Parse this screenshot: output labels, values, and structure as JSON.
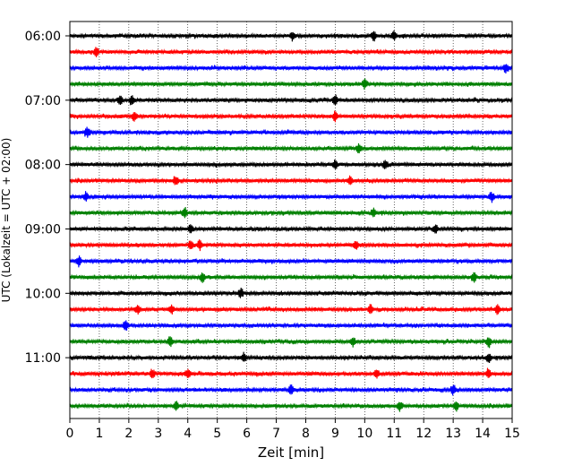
{
  "chart_data": {
    "type": "line",
    "title": "",
    "xlabel": "Zeit  [min]",
    "ylabel": "UTC (Lokalzeit = UTC + 02:00)",
    "xlim": [
      0,
      15
    ],
    "x_ticks": [
      "0",
      "1",
      "2",
      "3",
      "4",
      "5",
      "6",
      "7",
      "8",
      "9",
      "10",
      "11",
      "12",
      "13",
      "14",
      "15"
    ],
    "y_tick_labels": [
      "06:00",
      "07:00",
      "08:00",
      "09:00",
      "10:00",
      "11:00"
    ],
    "grid": "vertical dotted lines at each minute",
    "trace_interval_min": 15,
    "start_utc": "06:00",
    "end_utc": "11:45",
    "trace_colors": [
      "#000000",
      "#ff0000",
      "#0000ff",
      "#008000"
    ],
    "series": [
      {
        "label": "06:00",
        "color": "#000000",
        "events_min": [
          7.55,
          10.3,
          11.0
        ]
      },
      {
        "label": "06:15",
        "color": "#ff0000",
        "events_min": [
          0.9
        ]
      },
      {
        "label": "06:30",
        "color": "#0000ff",
        "events_min": [
          14.8
        ]
      },
      {
        "label": "06:45",
        "color": "#008000",
        "events_min": [
          10.0
        ]
      },
      {
        "label": "07:00",
        "color": "#000000",
        "events_min": [
          1.7,
          2.1,
          9.0
        ]
      },
      {
        "label": "07:15",
        "color": "#ff0000",
        "events_min": [
          2.2,
          9.0
        ]
      },
      {
        "label": "07:30",
        "color": "#0000ff",
        "events_min": [
          0.6
        ]
      },
      {
        "label": "07:45",
        "color": "#008000",
        "events_min": [
          9.8
        ]
      },
      {
        "label": "08:00",
        "color": "#000000",
        "events_min": [
          9.0,
          10.7
        ]
      },
      {
        "label": "08:15",
        "color": "#ff0000",
        "events_min": [
          3.6,
          9.5
        ]
      },
      {
        "label": "08:30",
        "color": "#0000ff",
        "events_min": [
          0.55,
          14.3
        ]
      },
      {
        "label": "08:45",
        "color": "#008000",
        "events_min": [
          3.9,
          10.3
        ]
      },
      {
        "label": "09:00",
        "color": "#000000",
        "events_min": [
          4.1,
          12.4
        ]
      },
      {
        "label": "09:15",
        "color": "#ff0000",
        "events_min": [
          4.1,
          4.4,
          9.7
        ]
      },
      {
        "label": "09:30",
        "color": "#0000ff",
        "events_min": [
          0.3
        ]
      },
      {
        "label": "09:45",
        "color": "#008000",
        "events_min": [
          4.5,
          13.7
        ]
      },
      {
        "label": "10:00",
        "color": "#000000",
        "events_min": [
          5.8
        ]
      },
      {
        "label": "10:15",
        "color": "#ff0000",
        "events_min": [
          2.3,
          3.45,
          10.2,
          14.5
        ]
      },
      {
        "label": "10:30",
        "color": "#0000ff",
        "events_min": [
          1.9
        ]
      },
      {
        "label": "10:45",
        "color": "#008000",
        "events_min": [
          3.4,
          9.6,
          14.2
        ]
      },
      {
        "label": "11:00",
        "color": "#000000",
        "events_min": [
          5.9,
          14.2
        ]
      },
      {
        "label": "11:15",
        "color": "#ff0000",
        "events_min": [
          2.8,
          4.0,
          10.4,
          14.2
        ]
      },
      {
        "label": "11:30",
        "color": "#0000ff",
        "events_min": [
          7.5,
          13.0
        ]
      },
      {
        "label": "11:45",
        "color": "#008000",
        "events_min": [
          3.6,
          11.2,
          13.1
        ]
      }
    ]
  }
}
